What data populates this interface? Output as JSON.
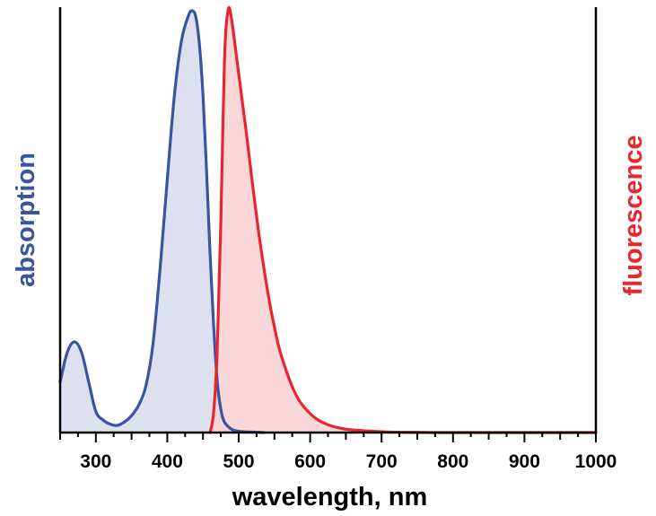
{
  "chart_data": {
    "type": "area",
    "xlabel": "wavelength, nm",
    "ylabel_left": "absorption",
    "ylabel_right": "fluorescence",
    "xlim": [
      250,
      1000
    ],
    "ylim": [
      0,
      1
    ],
    "xticks": [
      300,
      400,
      500,
      600,
      700,
      800,
      900,
      1000
    ],
    "grid": false,
    "colors": {
      "absorption_line": "#3b54a0",
      "absorption_fill": "#d6dbec",
      "fluorescence_line": "#e8262b",
      "fluorescence_fill": "#f9d0d2",
      "axis": "#000000"
    },
    "series": [
      {
        "key": "absorption",
        "x": [
          250,
          260,
          270,
          280,
          290,
          300,
          310,
          320,
          330,
          340,
          350,
          360,
          370,
          380,
          390,
          400,
          410,
          420,
          430,
          435,
          440,
          445,
          450,
          455,
          460,
          465,
          470,
          475,
          480,
          490,
          500,
          520,
          535
        ],
        "y": [
          0.12,
          0.19,
          0.215,
          0.19,
          0.12,
          0.05,
          0.03,
          0.02,
          0.017,
          0.025,
          0.04,
          0.065,
          0.11,
          0.21,
          0.39,
          0.6,
          0.8,
          0.93,
          0.99,
          1.0,
          0.985,
          0.92,
          0.8,
          0.62,
          0.42,
          0.25,
          0.12,
          0.055,
          0.025,
          0.008,
          0.003,
          0.001,
          0.0
        ]
      },
      {
        "key": "fluorescence",
        "x": [
          460,
          465,
          470,
          475,
          480,
          485,
          490,
          500,
          510,
          520,
          530,
          540,
          550,
          560,
          580,
          600,
          620,
          650,
          700,
          750,
          800,
          1000
        ],
        "y": [
          0.0,
          0.05,
          0.2,
          0.5,
          0.88,
          1.0,
          0.98,
          0.85,
          0.72,
          0.58,
          0.45,
          0.34,
          0.25,
          0.18,
          0.09,
          0.045,
          0.022,
          0.008,
          0.002,
          0.0005,
          0.0,
          0.0
        ]
      }
    ]
  }
}
